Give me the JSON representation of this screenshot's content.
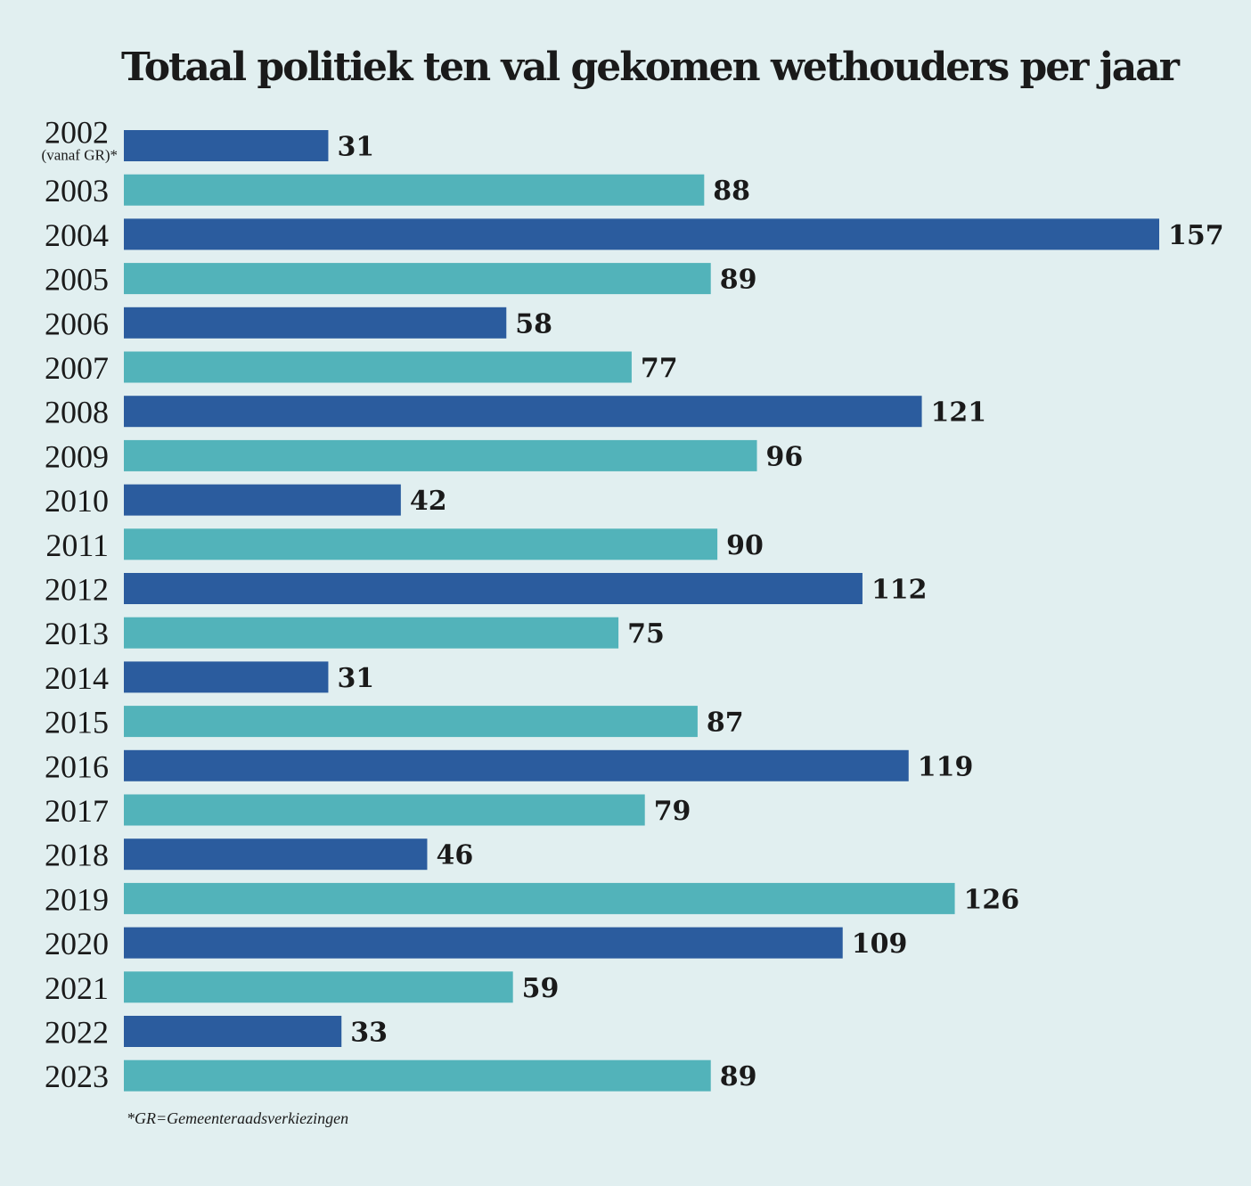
{
  "page": {
    "background": "#e1eff0",
    "footnote": "*GR=Gemeenteraadsverkiezingen"
  },
  "chart_data": {
    "type": "bar",
    "orientation": "horizontal",
    "title": "Totaal politiek ten val gekomen wethouders per jaar",
    "categories": [
      "2002",
      "2003",
      "2004",
      "2005",
      "2006",
      "2007",
      "2008",
      "2009",
      "2010",
      "2011",
      "2012",
      "2013",
      "2014",
      "2015",
      "2016",
      "2017",
      "2018",
      "2019",
      "2020",
      "2021",
      "2022",
      "2023"
    ],
    "category_notes": {
      "2002": "(vanaf GR)*"
    },
    "values": [
      31,
      88,
      157,
      89,
      58,
      77,
      121,
      96,
      42,
      90,
      112,
      75,
      31,
      87,
      119,
      79,
      46,
      126,
      109,
      59,
      33,
      89
    ],
    "colors": {
      "even": "#2b5c9e",
      "odd": "#52b3ba"
    },
    "xlim": [
      0,
      157
    ],
    "data_labels": true,
    "grid": false,
    "legend": "none"
  }
}
